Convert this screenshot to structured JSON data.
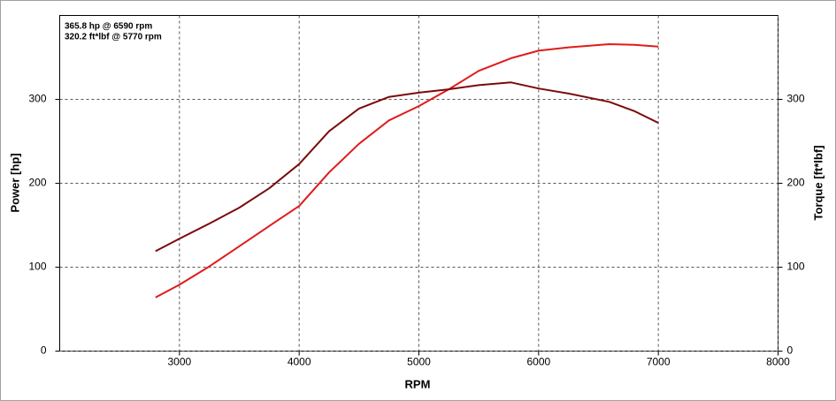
{
  "chart_data": {
    "type": "line",
    "x_label": "RPM",
    "y_label": "Power [hp]",
    "y2_label": "Torque [ft*lbf]",
    "annotations": [
      {
        "text": "365.8 hp @ 6590 rpm",
        "color": "#e01b1b"
      },
      {
        "text": "320.2 ft*lbf @ 5770 rpm",
        "color": "#8a0a0a"
      }
    ],
    "x": [
      2800,
      3000,
      3250,
      3500,
      3750,
      4000,
      4250,
      4500,
      4750,
      5000,
      5250,
      5500,
      5770,
      6000,
      6250,
      6590,
      6800,
      7000
    ],
    "series": [
      {
        "color": "#e01b1b",
        "values": [
          64,
          79,
          101,
          125,
          149,
          173,
          213,
          247,
          275,
          292,
          312,
          334,
          349,
          358,
          362,
          365.8,
          365,
          363
        ]
      },
      {
        "color": "#7a0b0b",
        "axis": "y2",
        "values": [
          119,
          134,
          152,
          171,
          194,
          223,
          262,
          289,
          303,
          308,
          312,
          317,
          320.2,
          313,
          307,
          297,
          286,
          272
        ]
      }
    ],
    "xlim": [
      2000,
      8000
    ],
    "xticks": [
      3000,
      4000,
      5000,
      6000,
      7000,
      8000
    ],
    "ylim": [
      0,
      400
    ],
    "yticks": [
      0,
      100,
      200,
      300
    ],
    "y2lim": [
      0,
      400
    ],
    "y2ticks": [
      0,
      100,
      200,
      300
    ],
    "grid": true
  }
}
